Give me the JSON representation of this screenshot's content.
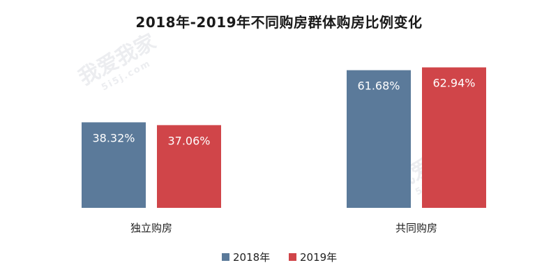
{
  "chart_data": {
    "type": "bar",
    "title": "2018年-2019年不同购房群体购房比例变化",
    "categories": [
      "独立购房",
      "共同购房"
    ],
    "series": [
      {
        "name": "2018年",
        "values": [
          38.32,
          61.68
        ],
        "labels": [
          "38.32%",
          "61.68%"
        ],
        "color": "#5b7a9a"
      },
      {
        "name": "2019年",
        "values": [
          37.06,
          62.94
        ],
        "labels": [
          "37.06%",
          "62.94%"
        ],
        "color": "#d04549"
      }
    ],
    "ylim": [
      0,
      75
    ],
    "grid": false,
    "legend_position": "bottom",
    "xlabel": "",
    "ylabel": ""
  },
  "watermark": {
    "text": "我爱我家",
    "sub": "5i5j.com"
  }
}
